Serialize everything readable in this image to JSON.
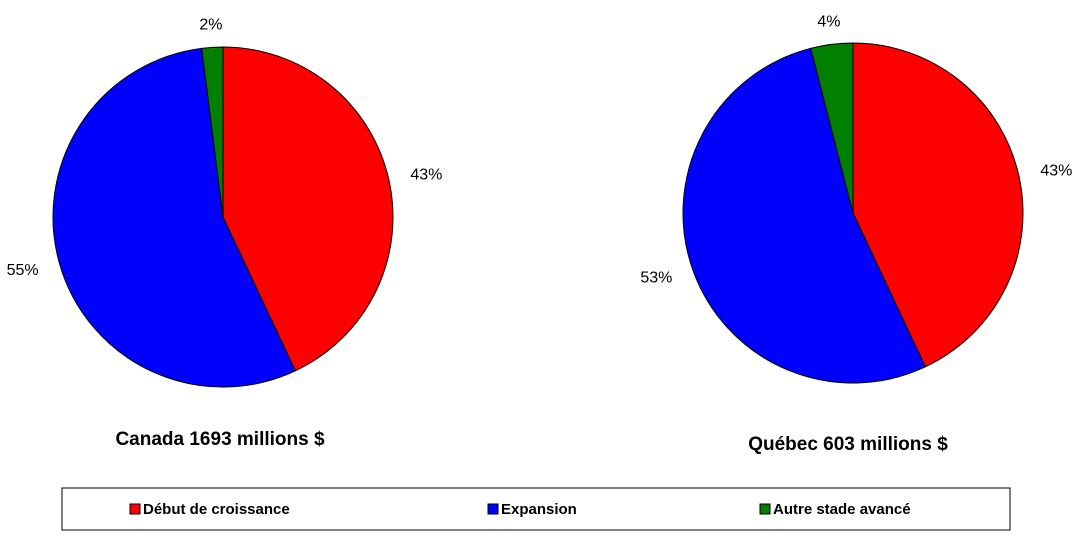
{
  "chart_data": [
    {
      "type": "pie",
      "title": "Canada 1693 millions $",
      "values": [
        43,
        55,
        2
      ],
      "value_labels": [
        "43%",
        "55%",
        "2%"
      ]
    },
    {
      "type": "pie",
      "title": "Québec 603 millions $",
      "values": [
        43,
        53,
        4
      ],
      "value_labels": [
        "43%",
        "53%",
        "4%"
      ]
    }
  ],
  "legend": {
    "items": [
      "Début de croissance",
      "Expansion",
      "Autre stade avancé"
    ],
    "colors": [
      "#ff0000",
      "#0000ff",
      "#007f00"
    ]
  }
}
